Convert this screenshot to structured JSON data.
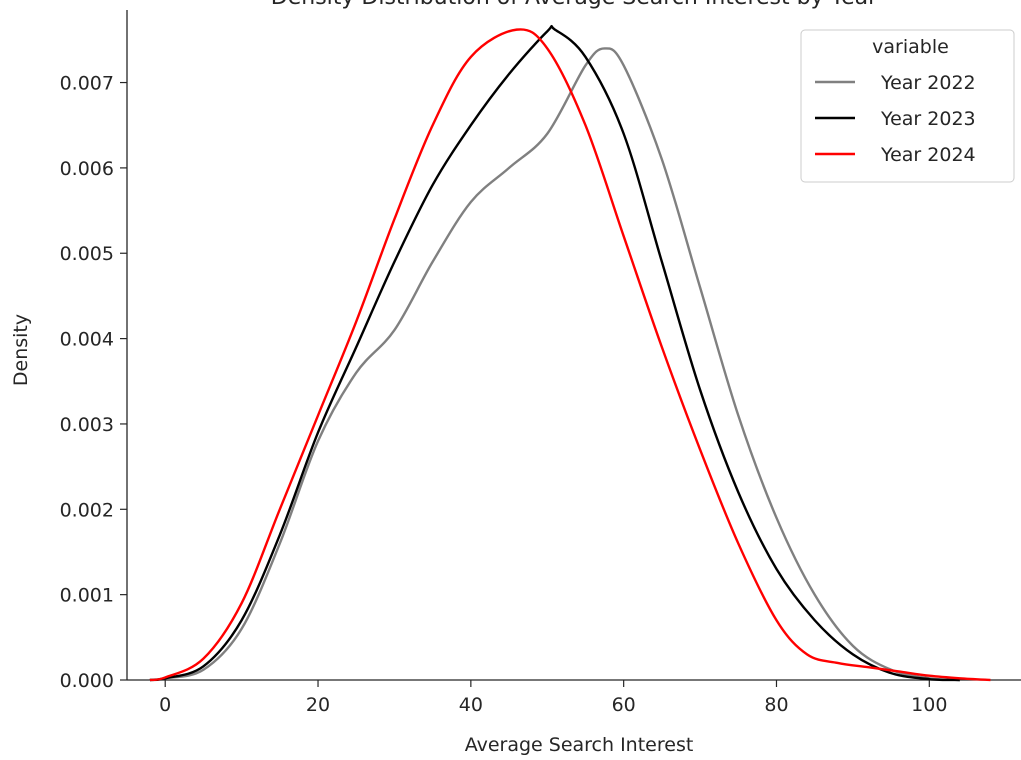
{
  "chart_data": {
    "type": "line",
    "title": "Density Distribution of Average Search Interest by Year",
    "xlabel": "Average Search Interest",
    "ylabel": "Density",
    "xlim": [
      -5,
      112
    ],
    "ylim": [
      0,
      0.00785
    ],
    "xticks": [
      0,
      20,
      40,
      60,
      80,
      100
    ],
    "yticks": [
      0.0,
      0.001,
      0.002,
      0.003,
      0.004,
      0.005,
      0.006,
      0.007
    ],
    "ytick_labels": [
      "0.000",
      "0.001",
      "0.002",
      "0.003",
      "0.004",
      "0.005",
      "0.006",
      "0.007"
    ],
    "grid": false,
    "legend": {
      "title": "variable",
      "position": "top-right"
    },
    "series": [
      {
        "name": "Year 2022",
        "color": "#808080",
        "points": [
          [
            -2,
            0.0
          ],
          [
            0,
            2e-05
          ],
          [
            5,
            0.00012
          ],
          [
            10,
            0.0006
          ],
          [
            15,
            0.0016
          ],
          [
            20,
            0.0028
          ],
          [
            25,
            0.0036
          ],
          [
            30,
            0.0041
          ],
          [
            35,
            0.0049
          ],
          [
            40,
            0.0056
          ],
          [
            45,
            0.006
          ],
          [
            50,
            0.0064
          ],
          [
            55,
            0.0072
          ],
          [
            57.5,
            0.0074
          ],
          [
            60,
            0.0072
          ],
          [
            65,
            0.0061
          ],
          [
            70,
            0.0046
          ],
          [
            75,
            0.0031
          ],
          [
            80,
            0.0019
          ],
          [
            85,
            0.001
          ],
          [
            90,
            0.0004
          ],
          [
            95,
            0.00012
          ],
          [
            100,
            2e-05
          ],
          [
            104,
            0.0
          ]
        ]
      },
      {
        "name": "Year 2023",
        "color": "#000000",
        "points": [
          [
            -2,
            0.0
          ],
          [
            0,
            2e-05
          ],
          [
            5,
            0.00016
          ],
          [
            10,
            0.0007
          ],
          [
            15,
            0.0017
          ],
          [
            20,
            0.0029
          ],
          [
            25,
            0.0039
          ],
          [
            30,
            0.0049
          ],
          [
            35,
            0.0058
          ],
          [
            40,
            0.0065
          ],
          [
            45,
            0.0071
          ],
          [
            50,
            0.0076
          ],
          [
            51,
            0.00762
          ],
          [
            55,
            0.0073
          ],
          [
            60,
            0.0064
          ],
          [
            65,
            0.0049
          ],
          [
            70,
            0.0034
          ],
          [
            75,
            0.0022
          ],
          [
            80,
            0.0013
          ],
          [
            85,
            0.0007
          ],
          [
            90,
            0.0003
          ],
          [
            95,
            8e-05
          ],
          [
            100,
            1e-05
          ],
          [
            104,
            0.0
          ]
        ]
      },
      {
        "name": "Year 2024",
        "color": "#ff0000",
        "points": [
          [
            -2,
            0.0
          ],
          [
            0,
            3e-05
          ],
          [
            5,
            0.00025
          ],
          [
            10,
            0.0009
          ],
          [
            15,
            0.002
          ],
          [
            20,
            0.0031
          ],
          [
            25,
            0.0042
          ],
          [
            30,
            0.0054
          ],
          [
            35,
            0.0065
          ],
          [
            40,
            0.0073
          ],
          [
            46,
            0.00762
          ],
          [
            50,
            0.0074
          ],
          [
            55,
            0.0065
          ],
          [
            60,
            0.0052
          ],
          [
            65,
            0.0039
          ],
          [
            70,
            0.0027
          ],
          [
            75,
            0.0016
          ],
          [
            80,
            0.0007
          ],
          [
            84,
            0.0003
          ],
          [
            88,
            0.0002
          ],
          [
            92,
            0.00015
          ],
          [
            96,
            0.0001
          ],
          [
            100,
            5e-05
          ],
          [
            104,
            2e-05
          ],
          [
            108,
            0.0
          ]
        ]
      }
    ]
  }
}
